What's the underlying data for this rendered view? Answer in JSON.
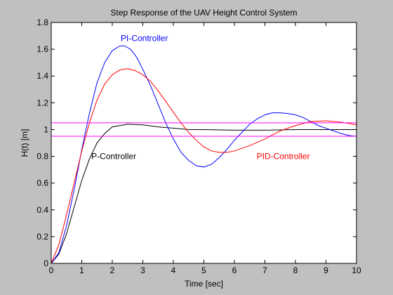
{
  "chart_data": {
    "type": "line",
    "title": "Step Response of the UAV Height Control System",
    "xlabel": "Time [sec]",
    "ylabel": "H(t) [m]",
    "xlim": [
      0,
      10
    ],
    "ylim": [
      0,
      1.8
    ],
    "x_ticks": [
      0,
      1,
      2,
      3,
      4,
      5,
      6,
      7,
      8,
      9,
      10
    ],
    "y_ticks": [
      0,
      0.2,
      0.4,
      0.6,
      0.8,
      1,
      1.2,
      1.4,
      1.6,
      1.8
    ],
    "grid": false,
    "series": [
      {
        "name": "P-Controller",
        "color": "#000000",
        "x": [
          0,
          0.25,
          0.5,
          0.75,
          1.0,
          1.25,
          1.5,
          1.75,
          2.0,
          2.5,
          3.0,
          3.5,
          4.0,
          4.5,
          5.0,
          6.0,
          7.0,
          8.0,
          9.0,
          10.0
        ],
        "y": [
          0,
          0.07,
          0.22,
          0.42,
          0.62,
          0.78,
          0.9,
          0.97,
          1.02,
          1.04,
          1.035,
          1.02,
          1.01,
          1.0,
          1.0,
          0.995,
          0.995,
          1.0,
          1.0,
          1.0
        ]
      },
      {
        "name": "PI-Controller",
        "color": "#0000ff",
        "x": [
          0,
          0.25,
          0.5,
          0.75,
          1.0,
          1.25,
          1.5,
          1.75,
          2.0,
          2.25,
          2.4,
          2.6,
          2.8,
          3.0,
          3.25,
          3.5,
          3.75,
          4.0,
          4.25,
          4.5,
          4.75,
          5.0,
          5.25,
          5.5,
          5.75,
          6.0,
          6.25,
          6.5,
          6.75,
          7.0,
          7.25,
          7.5,
          7.75,
          8.0,
          8.25,
          8.5,
          8.75,
          9.0,
          9.25,
          9.5,
          9.75,
          10.0
        ],
        "y": [
          0,
          0.08,
          0.28,
          0.55,
          0.85,
          1.12,
          1.35,
          1.5,
          1.59,
          1.625,
          1.625,
          1.6,
          1.54,
          1.45,
          1.33,
          1.19,
          1.05,
          0.93,
          0.83,
          0.77,
          0.73,
          0.72,
          0.74,
          0.79,
          0.85,
          0.92,
          0.98,
          1.04,
          1.08,
          1.11,
          1.125,
          1.125,
          1.12,
          1.11,
          1.09,
          1.06,
          1.03,
          1.01,
          0.99,
          0.97,
          0.955,
          0.95
        ]
      },
      {
        "name": "PID-Controller",
        "color": "#ff0000",
        "x": [
          0,
          0.25,
          0.5,
          0.75,
          1.0,
          1.25,
          1.5,
          1.75,
          2.0,
          2.25,
          2.5,
          2.75,
          3.0,
          3.25,
          3.5,
          3.75,
          4.0,
          4.25,
          4.5,
          4.75,
          5.0,
          5.25,
          5.5,
          5.75,
          6.0,
          6.5,
          7.0,
          7.5,
          8.0,
          8.5,
          9.0,
          9.25,
          9.5,
          9.75,
          10.0
        ],
        "y": [
          0,
          0.14,
          0.36,
          0.6,
          0.84,
          1.05,
          1.22,
          1.34,
          1.41,
          1.445,
          1.455,
          1.44,
          1.41,
          1.36,
          1.29,
          1.21,
          1.13,
          1.05,
          0.98,
          0.92,
          0.87,
          0.84,
          0.83,
          0.83,
          0.84,
          0.88,
          0.93,
          0.99,
          1.03,
          1.06,
          1.065,
          1.06,
          1.055,
          1.045,
          1.035
        ]
      },
      {
        "color": "#ff00ff",
        "x": [
          0,
          10
        ],
        "y": [
          1.05,
          1.05
        ]
      },
      {
        "color": "#ff00ff",
        "x": [
          0,
          10
        ],
        "y": [
          0.95,
          0.95
        ]
      }
    ],
    "annotations": [
      {
        "text": "PI-Controller",
        "x": 3.05,
        "y": 1.66,
        "color": "#0000ff"
      },
      {
        "text": "P-Controller",
        "x": 2.05,
        "y": 0.78,
        "color": "#000000"
      },
      {
        "text": "PID-Controller",
        "x": 7.6,
        "y": 0.78,
        "color": "#ff0000"
      }
    ]
  }
}
